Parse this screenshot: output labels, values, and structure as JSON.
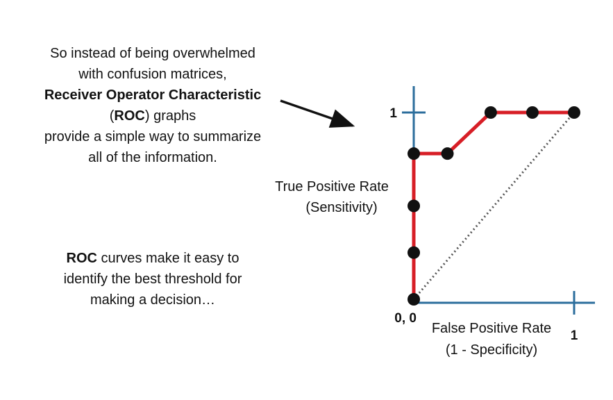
{
  "intro": {
    "line1": "So instead of being overwhelmed",
    "line2": "with confusion matrices,",
    "line3_bold": "Receiver Operator Characteristic",
    "line4_open": "(",
    "line4_bold": "ROC",
    "line4_rest": ") graphs",
    "line5": "provide a simple way to summarize",
    "line6": "all of the information."
  },
  "roc_note": {
    "bold": "ROC",
    "line1_rest": " curves make it easy to",
    "line2": "identify the best threshold for",
    "line3": "making a decision…"
  },
  "colors": {
    "axis": "#2c6e9c",
    "curve": "#d71e26",
    "points": "#111111",
    "diagonal": "#555555",
    "arrow": "#111111"
  },
  "chart_data": {
    "type": "line",
    "xlabel": "False Positive Rate\n(1 - Specificity)",
    "xlabel_line1": "False Positive Rate",
    "xlabel_line2": "(1 - Specificity)",
    "ylabel_line1": "True Positive Rate",
    "ylabel_line2": "(Sensitivity)",
    "origin_label": "0, 0",
    "x_tick_label": "1",
    "y_tick_label": "1",
    "xlim": [
      0,
      1
    ],
    "ylim": [
      0,
      1
    ],
    "series": [
      {
        "x": [
          0,
          0,
          0,
          0,
          0,
          0.21,
          0.48,
          0.74,
          1.0
        ],
        "y": [
          0,
          0.25,
          0.5,
          0.75,
          0.78,
          0.78,
          1.0,
          1.0,
          1.0
        ]
      }
    ],
    "diagonal": {
      "x": [
        0,
        1
      ],
      "y": [
        0,
        1
      ],
      "style": "dotted"
    },
    "points": [
      {
        "x": 0,
        "y": 0
      },
      {
        "x": 0,
        "y": 0.25
      },
      {
        "x": 0,
        "y": 0.5
      },
      {
        "x": 0,
        "y": 0.78
      },
      {
        "x": 0.21,
        "y": 0.78
      },
      {
        "x": 0.48,
        "y": 1.0
      },
      {
        "x": 0.74,
        "y": 1.0
      },
      {
        "x": 1.0,
        "y": 1.0
      }
    ]
  }
}
